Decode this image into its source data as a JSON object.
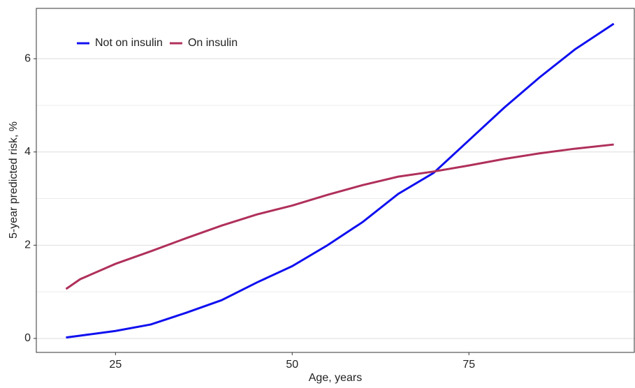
{
  "chart_data": {
    "type": "line",
    "x_label": "Age, years",
    "y_label": "5-year predicted risk, %",
    "x": [
      18,
      20,
      25,
      30,
      35,
      40,
      45,
      50,
      55,
      60,
      65,
      70,
      75,
      80,
      85,
      90,
      95.5
    ],
    "series": [
      {
        "name": "Not on insulin",
        "color": "#1010f0",
        "values": [
          0.02,
          0.06,
          0.16,
          0.3,
          0.55,
          0.82,
          1.2,
          1.55,
          2.0,
          2.5,
          3.1,
          3.55,
          4.25,
          4.95,
          5.6,
          6.2,
          6.75
        ]
      },
      {
        "name": "On insulin",
        "color": "#b0305a",
        "values": [
          1.06,
          1.27,
          1.6,
          1.87,
          2.15,
          2.42,
          2.66,
          2.85,
          3.08,
          3.29,
          3.47,
          3.58,
          3.71,
          3.85,
          3.97,
          4.07,
          4.16
        ]
      }
    ],
    "xlim": [
      13.8,
      98.5
    ],
    "xticks": [
      25,
      50,
      75
    ],
    "ylim": [
      -0.3,
      7.08
    ],
    "yticks": [
      0,
      2,
      4,
      6
    ],
    "minor_yticks": [
      1,
      3,
      5
    ],
    "grid": true,
    "legend": "top-left"
  }
}
